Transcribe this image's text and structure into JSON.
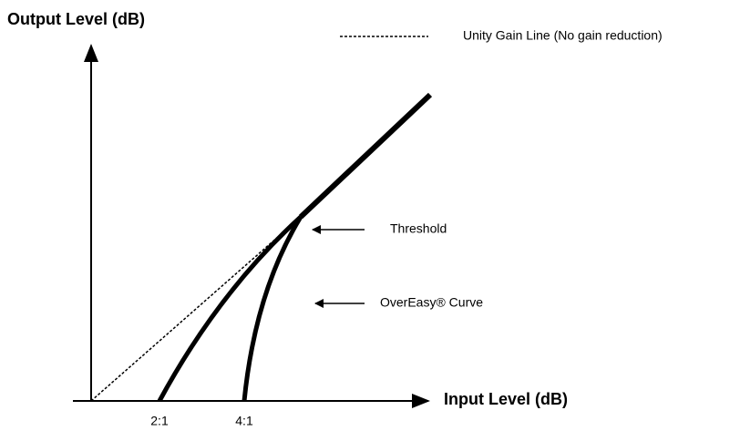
{
  "title": "Output Level (dB)",
  "legend": {
    "unity_line": "Unity Gain Line (No gain reduction)"
  },
  "annotations": {
    "threshold": "Threshold",
    "curve": "OverEasy® Curve"
  },
  "x_axis": {
    "label": "Input Level (dB)",
    "ratios": [
      "2:1",
      "4:1"
    ]
  }
}
